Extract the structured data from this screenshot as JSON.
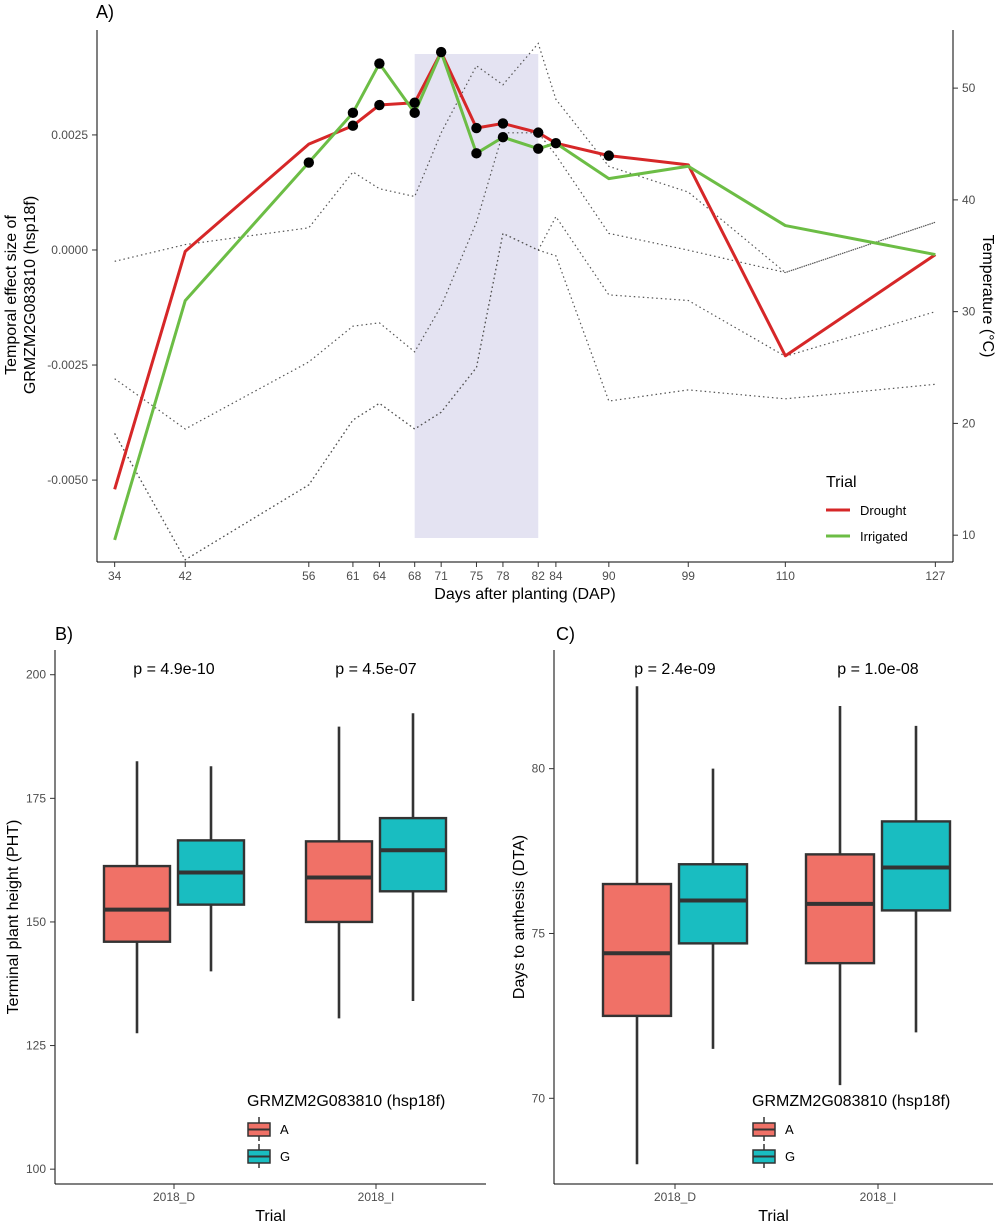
{
  "colors": {
    "drought": "#d62728",
    "irrigated": "#6cbd45",
    "allele_a": "#f07167",
    "allele_g": "#19bdc1",
    "shade": "#e4e3f2",
    "points": "#000000",
    "temp_lines": "#555555"
  },
  "chart_data": [
    {
      "panel": "A)",
      "type": "line",
      "xlabel": "Days after planting (DAP)",
      "ylabel_line1": "Temporal effect size of",
      "ylabel_line2": "GRMZM2G083810 (hsp18f)",
      "y2label": "Temperature (°C)",
      "x_ticks": [
        34,
        42,
        56,
        61,
        64,
        68,
        71,
        75,
        78,
        82,
        84,
        90,
        99,
        110,
        127
      ],
      "y_ticks": [
        0.0025,
        0.0,
        -0.0025,
        -0.005
      ],
      "y_tick_labels": [
        "0.0025",
        "0.0000",
        "-0.0025",
        "-0.0050"
      ],
      "y2_ticks": [
        50,
        40,
        30,
        20,
        10
      ],
      "y2_tick_labels": [
        "50",
        "40",
        "30",
        "20",
        "10"
      ],
      "xlim": [
        32,
        129
      ],
      "ylim": [
        -0.00678,
        0.00478
      ],
      "y2lim": [
        7.6,
        55.2
      ],
      "shaded_region": [
        68,
        82
      ],
      "series": [
        {
          "name": "Drought",
          "color_key": "drought",
          "x": [
            34,
            42,
            56,
            61,
            64,
            68,
            71,
            75,
            78,
            82,
            84,
            90,
            99,
            110,
            127
          ],
          "y": [
            -0.0052,
            -3e-05,
            0.0023,
            0.0027,
            0.00315,
            0.0032,
            0.0043,
            0.00265,
            0.00275,
            0.00255,
            0.00232,
            0.00205,
            0.00185,
            -0.0023,
            -0.0001
          ]
        },
        {
          "name": "Irrigated",
          "color_key": "irrigated",
          "x": [
            34,
            42,
            56,
            61,
            64,
            68,
            71,
            75,
            78,
            82,
            84,
            90,
            99,
            110,
            127
          ],
          "y": [
            -0.0063,
            -0.0011,
            0.0019,
            0.00298,
            0.00405,
            0.00298,
            0.0043,
            0.0021,
            0.00245,
            0.0022,
            0.00232,
            0.00155,
            0.00182,
            0.00053,
            -0.0001
          ]
        }
      ],
      "significant_points": [
        {
          "x": 56,
          "y": 0.0019
        },
        {
          "x": 61,
          "y": 0.0027
        },
        {
          "x": 61,
          "y": 0.00298
        },
        {
          "x": 64,
          "y": 0.00315
        },
        {
          "x": 64,
          "y": 0.00405
        },
        {
          "x": 68,
          "y": 0.0032
        },
        {
          "x": 68,
          "y": 0.00298
        },
        {
          "x": 71,
          "y": 0.0043
        },
        {
          "x": 75,
          "y": 0.00265
        },
        {
          "x": 75,
          "y": 0.0021
        },
        {
          "x": 78,
          "y": 0.00275
        },
        {
          "x": 78,
          "y": 0.00245
        },
        {
          "x": 82,
          "y": 0.00255
        },
        {
          "x": 82,
          "y": 0.0022
        },
        {
          "x": 84,
          "y": 0.00232
        },
        {
          "x": 90,
          "y": 0.00205
        }
      ],
      "temperature_lines": [
        {
          "name": "upper-1",
          "x": [
            34,
            42,
            56,
            61,
            64,
            68,
            71,
            75,
            78,
            82,
            84,
            90,
            99,
            110,
            127
          ],
          "y": [
            34.5,
            36,
            37.5,
            42.5,
            41,
            40.3,
            46,
            52,
            50.3,
            54,
            49,
            43,
            40.7,
            33.5,
            38
          ]
        },
        {
          "name": "upper-2",
          "x": [
            34,
            42,
            56,
            61,
            64,
            68,
            71,
            75,
            78,
            82,
            84,
            90,
            99,
            110,
            127
          ],
          "y": [
            24,
            19.5,
            25.5,
            28.7,
            29,
            26.4,
            30.5,
            38,
            46,
            46,
            44,
            37,
            35.5,
            33.5,
            38
          ]
        },
        {
          "name": "lower-1",
          "x": [
            34,
            42,
            56,
            61,
            64,
            68,
            71,
            75,
            78,
            82,
            84,
            90,
            99,
            110,
            127
          ],
          "y": [
            19.1,
            7.8,
            14.5,
            20.3,
            21.8,
            19.5,
            21,
            25,
            37,
            35.5,
            38.5,
            31.5,
            31,
            26,
            30
          ]
        },
        {
          "name": "lower-2",
          "x": [
            34,
            42,
            56,
            61,
            64,
            68,
            71,
            75,
            78,
            82,
            84,
            90,
            99,
            110,
            127
          ],
          "y": [
            19.1,
            7.8,
            14.5,
            20.3,
            21.8,
            19.5,
            21,
            25,
            37,
            35.5,
            35,
            22,
            23,
            22.2,
            23.5
          ]
        }
      ],
      "legend": {
        "title": "Trial",
        "position": "bottom-right",
        "items": [
          {
            "label": "Drought",
            "color_key": "drought"
          },
          {
            "label": "Irrigated",
            "color_key": "irrigated"
          }
        ]
      }
    },
    {
      "panel": "B)",
      "type": "box",
      "xlabel": "Trial",
      "ylabel": "Terminal plant height (PHT)",
      "ylim": [
        97,
        205
      ],
      "y_ticks": [
        100,
        125,
        150,
        175,
        200
      ],
      "y_tick_labels": [
        "100",
        "125",
        "150",
        "175",
        "200"
      ],
      "categories": [
        "2018_D",
        "2018_I"
      ],
      "p_values": [
        "p = 4.9e-10",
        "p = 4.5e-07"
      ],
      "boxes": [
        {
          "category": "2018_D",
          "allele": "A",
          "whisker_low": 127.5,
          "q1": 146,
          "median": 152.5,
          "q3": 161.3,
          "whisker_high": 182.5
        },
        {
          "category": "2018_D",
          "allele": "G",
          "whisker_low": 140,
          "q1": 153.5,
          "median": 160,
          "q3": 166.5,
          "whisker_high": 181.5
        },
        {
          "category": "2018_I",
          "allele": "A",
          "whisker_low": 130.5,
          "q1": 150,
          "median": 159,
          "q3": 166.3,
          "whisker_high": 189.5
        },
        {
          "category": "2018_I",
          "allele": "G",
          "whisker_low": 134,
          "q1": 156.2,
          "median": 164.5,
          "q3": 171,
          "whisker_high": 192.2
        }
      ],
      "legend": {
        "title": "GRMZM2G083810 (hsp18f)",
        "position": "bottom-center",
        "items": [
          {
            "label": "A",
            "color_key": "allele_a"
          },
          {
            "label": "G",
            "color_key": "allele_g"
          }
        ]
      }
    },
    {
      "panel": "C)",
      "type": "box",
      "xlabel": "Trial",
      "ylabel": "Days to anthesis (DTA)",
      "ylim": [
        67.4,
        83.6
      ],
      "y_ticks": [
        70,
        75,
        80
      ],
      "y_tick_labels": [
        "70",
        "75",
        "80"
      ],
      "categories": [
        "2018_D",
        "2018_I"
      ],
      "p_values": [
        "p = 2.4e-09",
        "p = 1.0e-08"
      ],
      "boxes": [
        {
          "category": "2018_D",
          "allele": "A",
          "whisker_low": 68,
          "q1": 72.5,
          "median": 74.4,
          "q3": 76.5,
          "whisker_high": 82.5
        },
        {
          "category": "2018_D",
          "allele": "G",
          "whisker_low": 71.5,
          "q1": 74.7,
          "median": 76,
          "q3": 77.1,
          "whisker_high": 80
        },
        {
          "category": "2018_I",
          "allele": "A",
          "whisker_low": 70.4,
          "q1": 74.1,
          "median": 75.9,
          "q3": 77.4,
          "whisker_high": 81.9
        },
        {
          "category": "2018_I",
          "allele": "G",
          "whisker_low": 72,
          "q1": 75.7,
          "median": 77,
          "q3": 78.4,
          "whisker_high": 81.3
        }
      ],
      "legend": {
        "title": "GRMZM2G083810 (hsp18f)",
        "position": "bottom-center",
        "items": [
          {
            "label": "A",
            "color_key": "allele_a"
          },
          {
            "label": "G",
            "color_key": "allele_g"
          }
        ]
      }
    }
  ]
}
